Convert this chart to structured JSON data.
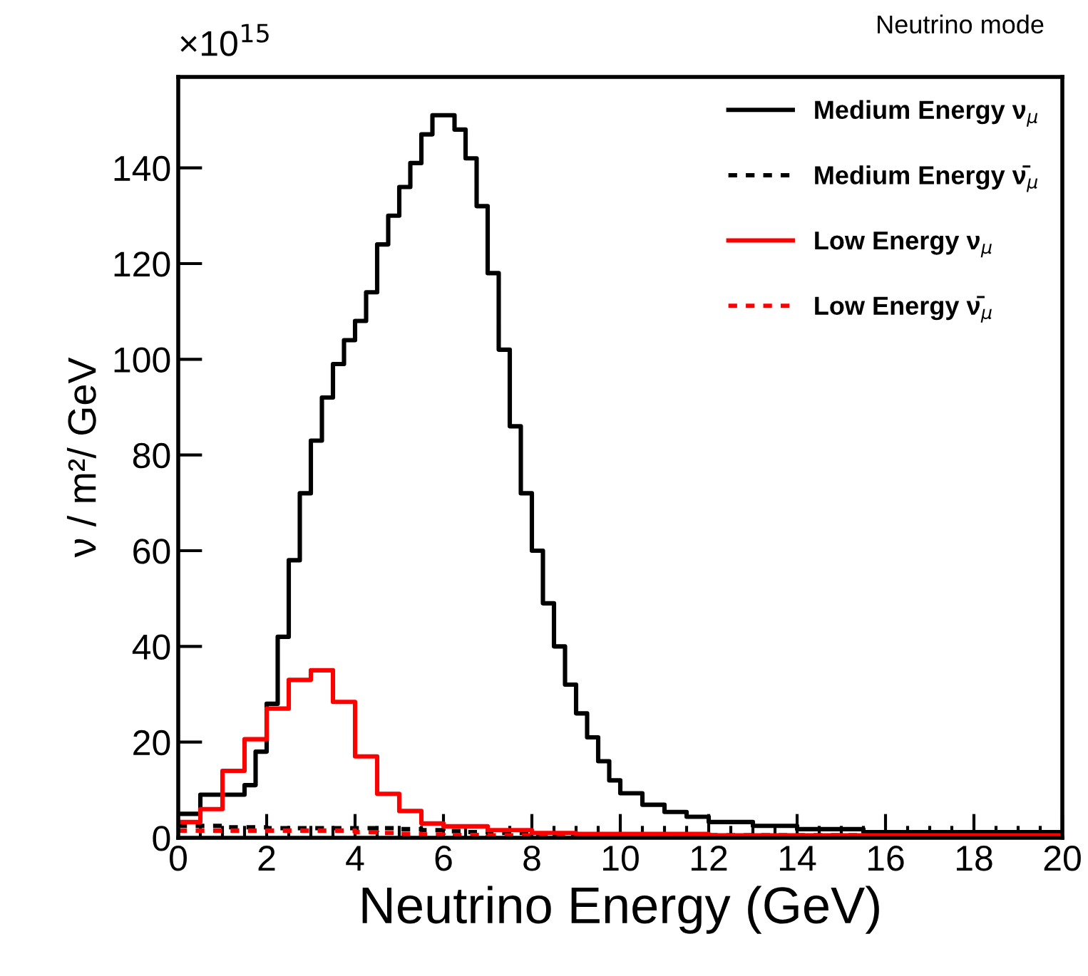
{
  "chart_data": {
    "type": "step",
    "xlabel": "Neutrino Energy (GeV)",
    "ylabel": "ν / m²/ GeV",
    "annotations": [
      "Neutrino mode",
      "×10$^{15}$"
    ],
    "x": [
      0,
      0.25,
      0.5,
      0.75,
      1,
      1.25,
      1.5,
      1.75,
      2,
      2.25,
      2.5,
      2.75,
      3,
      3.25,
      3.5,
      3.75,
      4,
      4.25,
      4.5,
      4.75,
      5,
      5.25,
      5.5,
      5.75,
      6,
      6.25,
      6.5,
      6.75,
      7,
      7.25,
      7.5,
      7.75,
      8,
      8.25,
      8.5,
      8.75,
      9,
      9.25,
      9.5,
      9.75,
      10,
      10.25,
      10.5,
      10.75,
      11,
      11.25,
      11.5,
      11.75,
      12,
      12.25,
      12.5,
      12.75,
      13,
      13.25,
      13.5,
      13.75,
      14,
      14.25,
      14.5,
      14.75,
      15,
      15.25,
      15.5,
      15.75,
      16,
      16.25,
      16.5,
      16.75,
      17,
      17.25,
      17.5,
      17.75,
      18,
      18.25,
      18.5,
      18.75,
      19,
      19.25,
      19.5,
      19.75,
      20
    ],
    "series": [
      {
        "name": "Medium Energy ν$_{μ}$",
        "color": "#000000",
        "line_style": "solid",
        "values": [
          5,
          5,
          9,
          9,
          9,
          9,
          11,
          18,
          28,
          42,
          58,
          72,
          83,
          92,
          99,
          104,
          108,
          114,
          124,
          130,
          136,
          141,
          147,
          151,
          151,
          148,
          142,
          132,
          118,
          102,
          86,
          72,
          60,
          49,
          40,
          32,
          26,
          21,
          16,
          12,
          9.3,
          9.3,
          6.9,
          6.9,
          5.4,
          5.4,
          4.4,
          4.4,
          3.3,
          3.3,
          3.3,
          3.3,
          2.5,
          2.5,
          2.5,
          2.5,
          1.8,
          1.8,
          1.8,
          1.8,
          1.8,
          1.8,
          1.2,
          1.2,
          1.2,
          1.2,
          1.2,
          1.2,
          1.2,
          1.2,
          1.2,
          1.2,
          1.2,
          1.2,
          1.2,
          1.2,
          1.2,
          1.2,
          1.2,
          1.2,
          1.2
        ]
      },
      {
        "name": "Medium Energy ν̄$_{μ}$",
        "color": "#000000",
        "line_style": "dotted",
        "values": [
          2.5,
          2.5,
          2.5,
          2.5,
          2.2,
          2.2,
          2.2,
          2.2,
          2,
          2,
          2,
          2,
          2,
          2,
          2,
          2,
          2,
          2,
          2,
          2,
          1.8,
          1.8,
          1.6,
          1.6,
          1.4,
          1.4,
          1.2,
          1.2,
          1,
          1,
          1,
          1,
          0.8,
          0.8,
          0.8,
          0.8,
          0.6,
          0.6,
          0.6,
          0.6,
          0.5,
          0.5,
          0.5,
          0.5,
          0.5,
          0.5,
          0.5,
          0.5,
          0.5,
          0.5,
          0.5,
          0.5,
          0.5,
          0.5,
          0.5,
          0.5,
          0.5,
          0.5,
          0.5,
          0.5,
          0.5,
          0.5,
          0.5,
          0.5,
          0.5,
          0.5,
          0.5,
          0.5,
          0.5,
          0.5,
          0.5,
          0.5,
          0.5,
          0.5,
          0.5,
          0.5,
          0.5,
          0.5,
          0.5,
          0.5,
          0.5
        ]
      },
      {
        "name": "Low Energy ν$_{μ}$",
        "color": "#ff0000",
        "line_style": "solid",
        "values": [
          3.3,
          3.3,
          6,
          6,
          14,
          14,
          20.6,
          20.6,
          27,
          27,
          33,
          33,
          35,
          35,
          28.4,
          28.4,
          17,
          17,
          9.2,
          9.2,
          5.6,
          5.6,
          3,
          3,
          2.4,
          2.4,
          2.4,
          2.4,
          1.6,
          1.6,
          1.6,
          1.6,
          1,
          1,
          1,
          1,
          0.8,
          0.8,
          0.8,
          0.8,
          0.8,
          0.8,
          0.8,
          0.8,
          0.8,
          0.8,
          0.8,
          0.8,
          0.5,
          0.5,
          0.5,
          0.5,
          0.5,
          0.5,
          0.5,
          0.5,
          0.5,
          0.5,
          0.5,
          0.5,
          0.5,
          0.5,
          0.5,
          0.5,
          0.5,
          0.5,
          0.5,
          0.5,
          0.5,
          0.5,
          0.5,
          0.5,
          0.5,
          0.5,
          0.5,
          0.5,
          0.5,
          0.5,
          0.5,
          0.5,
          0.5
        ]
      },
      {
        "name": "Low Energy ν̄$_{μ}$",
        "color": "#ff0000",
        "line_style": "dotted",
        "values": [
          1.5,
          1.5,
          1.5,
          1.5,
          1.5,
          1.5,
          1.5,
          1.5,
          1.5,
          1.5,
          1.5,
          1.5,
          1.5,
          1.5,
          1.5,
          1.5,
          1.2,
          1.2,
          1,
          1,
          0.8,
          0.8,
          0.7,
          0.7,
          0.6,
          0.6,
          0.6,
          0.6,
          0.5,
          0.5,
          0.5,
          0.5,
          0.4,
          0.4,
          0.4,
          0.4,
          0.4,
          0.4,
          0.4,
          0.4,
          0.3,
          0.3,
          0.3,
          0.3,
          0.3,
          0.3,
          0.3,
          0.3,
          0.3,
          0.3,
          0.3,
          0.3,
          0.3,
          0.3,
          0.3,
          0.3,
          0.3,
          0.3,
          0.3,
          0.3,
          0.3,
          0.3,
          0.3,
          0.3,
          0.3,
          0.3,
          0.3,
          0.3,
          0.3,
          0.3,
          0.3,
          0.3,
          0.3,
          0.3,
          0.3,
          0.3,
          0.3,
          0.3,
          0.3,
          0.3,
          0.3
        ]
      }
    ],
    "xlim": [
      0,
      20
    ],
    "ylim": [
      0,
      159
    ],
    "xticks": [
      0,
      2,
      4,
      6,
      8,
      10,
      12,
      14,
      16,
      18,
      20
    ],
    "yticks": [
      0,
      20,
      40,
      60,
      80,
      100,
      120,
      140
    ],
    "legend": "top right",
    "grid": false
  }
}
